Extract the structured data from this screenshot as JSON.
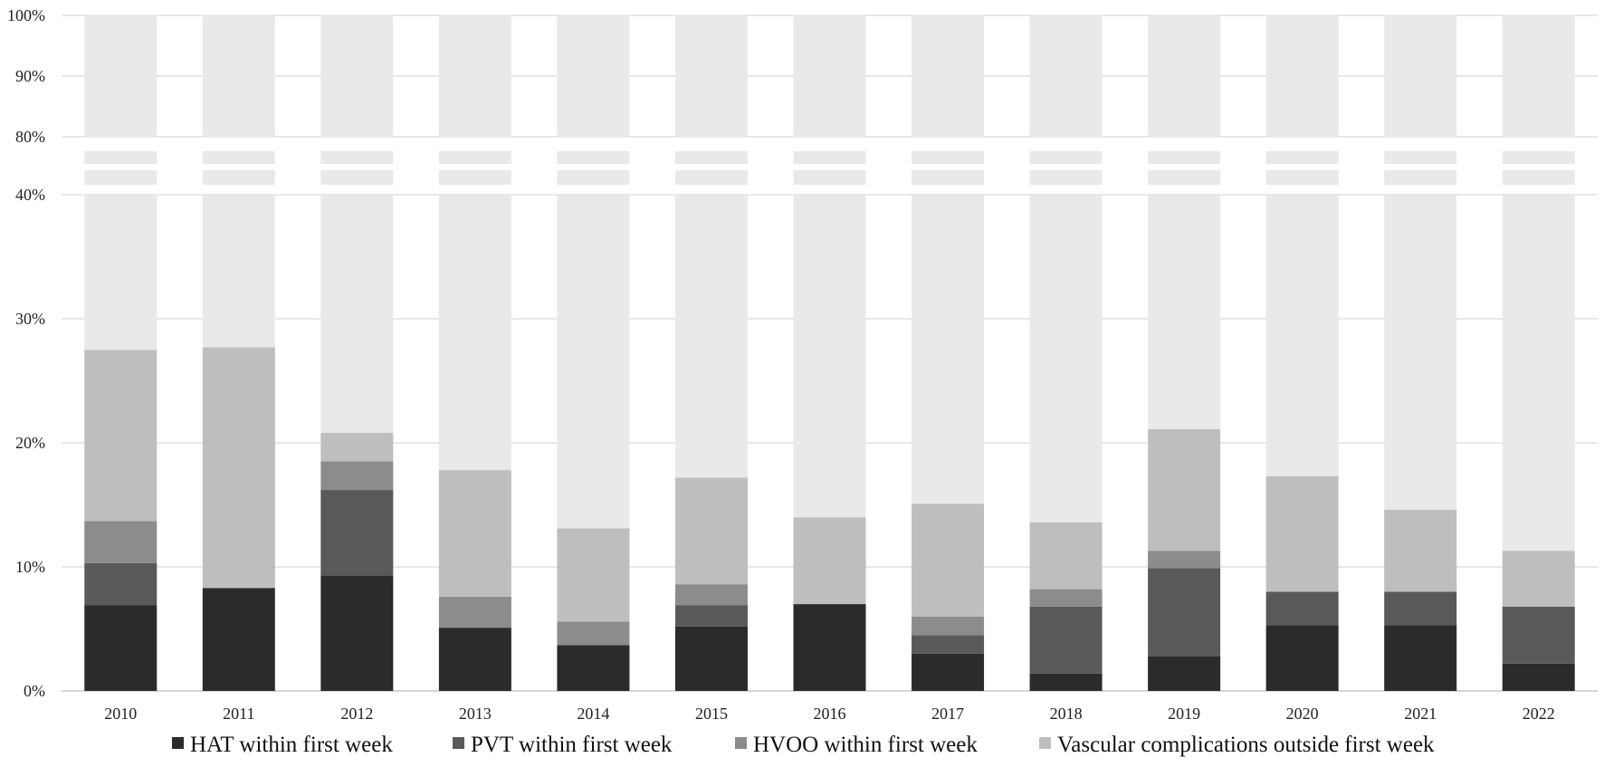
{
  "chart_data": {
    "type": "bar",
    "stacked": true,
    "broken_axis": {
      "lower_range": [
        0,
        40
      ],
      "upper_range": [
        80,
        100
      ]
    },
    "categories": [
      "2010",
      "2011",
      "2012",
      "2013",
      "2014",
      "2015",
      "2016",
      "2017",
      "2018",
      "2019",
      "2020",
      "2021",
      "2022"
    ],
    "y_ticks": [
      {
        "value": 0,
        "label": "0%"
      },
      {
        "value": 10,
        "label": "10%"
      },
      {
        "value": 20,
        "label": "20%"
      },
      {
        "value": 30,
        "label": "30%"
      },
      {
        "value": 40,
        "label": "40%"
      },
      {
        "value": 80,
        "label": "80%"
      },
      {
        "value": 90,
        "label": "90%"
      },
      {
        "value": 100,
        "label": "100%"
      }
    ],
    "grid": true,
    "legend_position": "bottom",
    "series": [
      {
        "name": "HAT within first week",
        "color": "#2b2b2b",
        "values": [
          6.9,
          8.3,
          9.3,
          5.1,
          3.7,
          5.2,
          7.0,
          3.0,
          1.4,
          2.8,
          5.3,
          5.3,
          2.2
        ]
      },
      {
        "name": "PVT within first week",
        "color": "#595959",
        "values": [
          3.4,
          0,
          6.9,
          0,
          0,
          1.7,
          0,
          1.5,
          5.4,
          7.1,
          2.7,
          2.7,
          4.6
        ]
      },
      {
        "name": "HVOO within first week",
        "color": "#8c8c8c",
        "values": [
          3.4,
          0,
          2.3,
          2.5,
          1.9,
          1.7,
          0,
          1.5,
          1.4,
          1.4,
          0,
          0,
          0
        ]
      },
      {
        "name": "Vascular complications outside first week",
        "color": "#bebebe",
        "values": [
          13.8,
          19.4,
          2.3,
          10.2,
          7.5,
          8.6,
          7.0,
          9.1,
          5.4,
          9.8,
          9.3,
          6.6,
          4.5
        ]
      }
    ],
    "remainder_color": "#e9e9e9"
  }
}
